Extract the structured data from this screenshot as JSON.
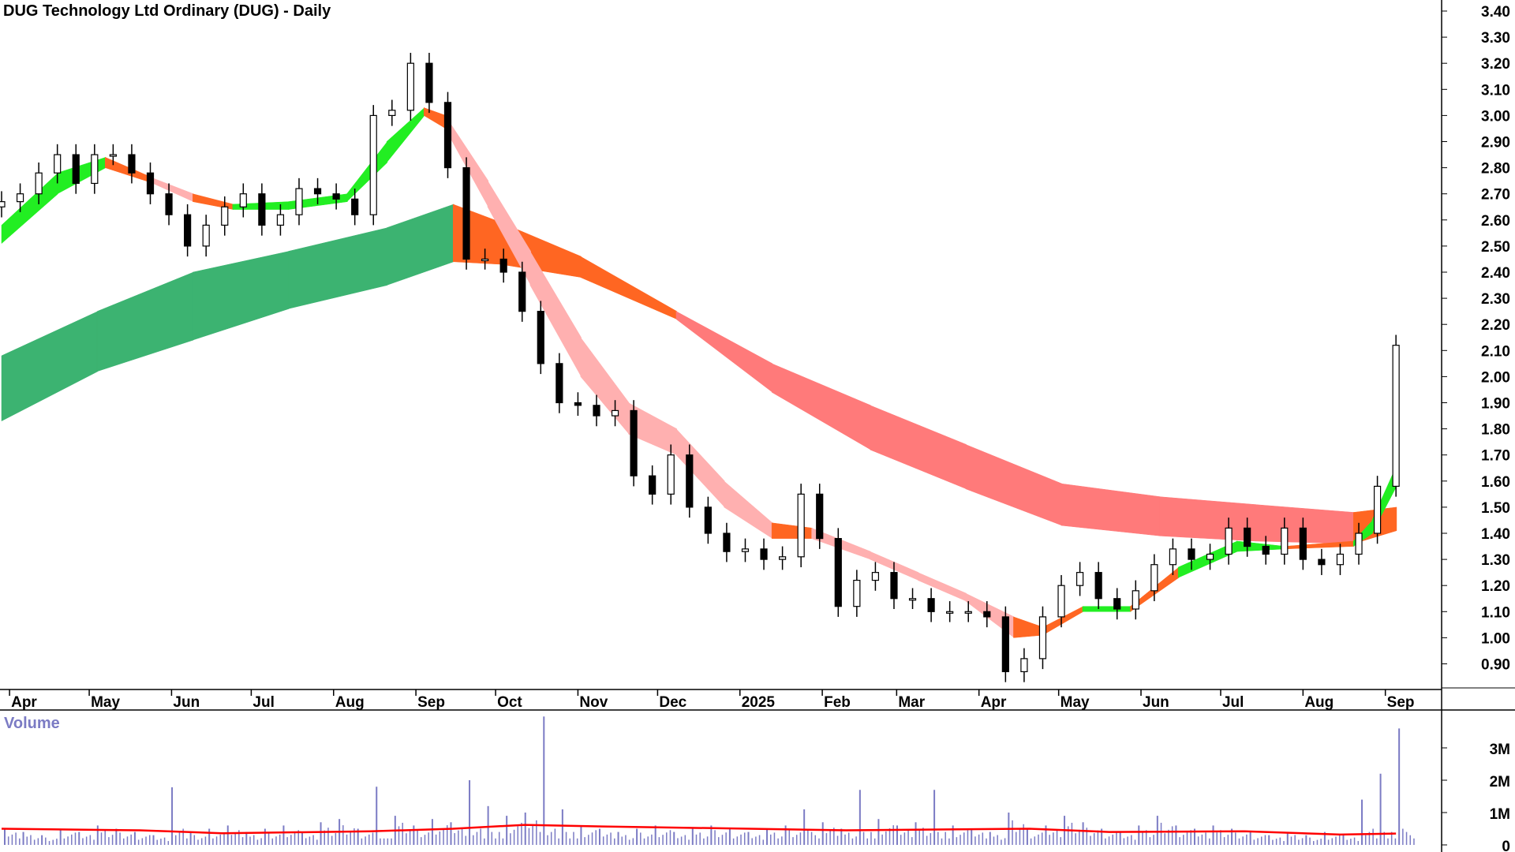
{
  "chart_data": {
    "title": "DUG Technology Ltd Ordinary (DUG) - Daily",
    "type": "candlestick",
    "price_axis": {
      "ylim": [
        0.85,
        3.42
      ],
      "ticks": [
        "3.40",
        "3.30",
        "3.20",
        "3.10",
        "3.00",
        "2.90",
        "2.80",
        "2.70",
        "2.60",
        "2.50",
        "2.40",
        "2.30",
        "2.20",
        "2.10",
        "2.00",
        "1.90",
        "1.80",
        "1.70",
        "1.60",
        "1.50",
        "1.40",
        "1.30",
        "1.20",
        "1.10",
        "1.00",
        "0.90"
      ],
      "position": "right"
    },
    "x_axis": {
      "ticks": [
        {
          "date": "2024-04-01",
          "label": "Apr"
        },
        {
          "date": "2024-05-01",
          "label": "May"
        },
        {
          "date": "2024-06-01",
          "label": "Jun"
        },
        {
          "date": "2024-07-01",
          "label": "Jul"
        },
        {
          "date": "2024-08-01",
          "label": "Aug"
        },
        {
          "date": "2024-09-01",
          "label": "Sep"
        },
        {
          "date": "2024-10-01",
          "label": "Oct"
        },
        {
          "date": "2024-11-01",
          "label": "Nov"
        },
        {
          "date": "2024-12-01",
          "label": "Dec"
        },
        {
          "date": "2025-01-01",
          "label": "2025"
        },
        {
          "date": "2025-02-01",
          "label": "Feb"
        },
        {
          "date": "2025-03-01",
          "label": "Mar"
        },
        {
          "date": "2025-04-01",
          "label": "Apr"
        },
        {
          "date": "2025-05-01",
          "label": "May"
        },
        {
          "date": "2025-06-01",
          "label": "Jun"
        },
        {
          "date": "2025-07-01",
          "label": "Jul"
        },
        {
          "date": "2025-08-01",
          "label": "Aug"
        },
        {
          "date": "2025-09-01",
          "label": "Sep"
        }
      ]
    },
    "weekly_start": "2024-03-29",
    "weekly_close": [
      2.67,
      2.7,
      2.78,
      2.85,
      2.74,
      2.85,
      2.85,
      2.78,
      2.7,
      2.62,
      2.5,
      2.58,
      2.65,
      2.7,
      2.58,
      2.62,
      2.72,
      2.7,
      2.68,
      2.62,
      3.0,
      3.02,
      3.2,
      3.05,
      2.8,
      2.45,
      2.45,
      2.4,
      2.25,
      2.05,
      1.9,
      1.89,
      1.85,
      1.87,
      1.62,
      1.55,
      1.7,
      1.5,
      1.4,
      1.33,
      1.34,
      1.3,
      1.31,
      1.55,
      1.38,
      1.12,
      1.22,
      1.25,
      1.15,
      1.15,
      1.1,
      1.1,
      1.1,
      1.08,
      0.87,
      0.92,
      1.08,
      1.2,
      1.25,
      1.15,
      1.11,
      1.18,
      1.28,
      1.34,
      1.3,
      1.32,
      1.42,
      1.35,
      1.32,
      1.42,
      1.3,
      1.28,
      1.32,
      1.4,
      1.58,
      2.12
    ],
    "long_term_band": [
      {
        "date": "2024-03-29",
        "upper": 2.08,
        "lower": 1.83,
        "color": "#3cb371"
      },
      {
        "date": "2024-05-04",
        "upper": 2.25,
        "lower": 2.02,
        "color": "#3cb371"
      },
      {
        "date": "2024-06-09",
        "upper": 2.4,
        "lower": 2.14,
        "color": "#3cb371"
      },
      {
        "date": "2024-07-15",
        "upper": 2.48,
        "lower": 2.26,
        "color": "#3cb371"
      },
      {
        "date": "2024-08-21",
        "upper": 2.57,
        "lower": 2.35,
        "color": "#3cb371"
      },
      {
        "date": "2024-09-15",
        "upper": 2.66,
        "lower": 2.44,
        "color": "#ff6622"
      },
      {
        "date": "2024-10-03",
        "upper": 2.59,
        "lower": 2.43,
        "color": "#ff6622"
      },
      {
        "date": "2024-11-02",
        "upper": 2.46,
        "lower": 2.38,
        "color": "#ff6622"
      },
      {
        "date": "2024-12-08",
        "upper": 2.25,
        "lower": 2.22,
        "color": "#ff7a7a"
      },
      {
        "date": "2025-01-13",
        "upper": 2.05,
        "lower": 1.94,
        "color": "#ff7a7a"
      },
      {
        "date": "2025-02-19",
        "upper": 1.89,
        "lower": 1.72,
        "color": "#ff7a7a"
      },
      {
        "date": "2025-03-27",
        "upper": 1.74,
        "lower": 1.57,
        "color": "#ff7a7a"
      },
      {
        "date": "2025-05-02",
        "upper": 1.59,
        "lower": 1.43,
        "color": "#ff7a7a"
      },
      {
        "date": "2025-06-08",
        "upper": 1.54,
        "lower": 1.39,
        "color": "#ff7a7a"
      },
      {
        "date": "2025-07-14",
        "upper": 1.51,
        "lower": 1.37,
        "color": "#ff7a7a"
      },
      {
        "date": "2025-08-20",
        "upper": 1.48,
        "lower": 1.36,
        "color": "#ff6622"
      },
      {
        "date": "2025-09-05",
        "upper": 1.5,
        "lower": 1.41,
        "color": "#ff6622"
      }
    ],
    "short_term_band": [
      {
        "date": "2024-03-29",
        "upper": 2.58,
        "lower": 2.51,
        "color": "#22ee22"
      },
      {
        "date": "2024-04-19",
        "upper": 2.78,
        "lower": 2.7,
        "color": "#22ee22"
      },
      {
        "date": "2024-05-07",
        "upper": 2.84,
        "lower": 2.8,
        "color": "#ff6622"
      },
      {
        "date": "2024-05-25",
        "upper": 2.76,
        "lower": 2.74,
        "color": "#ffb0b0"
      },
      {
        "date": "2024-06-09",
        "upper": 2.7,
        "lower": 2.67,
        "color": "#ff6622"
      },
      {
        "date": "2024-06-24",
        "upper": 2.66,
        "lower": 2.64,
        "color": "#22ee22"
      },
      {
        "date": "2024-07-15",
        "upper": 2.67,
        "lower": 2.64,
        "color": "#22ee22"
      },
      {
        "date": "2024-08-06",
        "upper": 2.7,
        "lower": 2.67,
        "color": "#22ee22"
      },
      {
        "date": "2024-08-21",
        "upper": 2.9,
        "lower": 2.82,
        "color": "#22ee22"
      },
      {
        "date": "2024-09-04",
        "upper": 3.03,
        "lower": 3.0,
        "color": "#ff6622"
      },
      {
        "date": "2024-09-12",
        "upper": 3.0,
        "lower": 2.95,
        "color": "#ffb0b0"
      },
      {
        "date": "2024-09-28",
        "upper": 2.75,
        "lower": 2.65,
        "color": "#ffb0b0"
      },
      {
        "date": "2024-10-14",
        "upper": 2.48,
        "lower": 2.35,
        "color": "#ffb0b0"
      },
      {
        "date": "2024-11-02",
        "upper": 2.15,
        "lower": 2.0,
        "color": "#ffb0b0"
      },
      {
        "date": "2024-11-20",
        "upper": 1.9,
        "lower": 1.78,
        "color": "#ffb0b0"
      },
      {
        "date": "2024-12-08",
        "upper": 1.8,
        "lower": 1.7,
        "color": "#ffb0b0"
      },
      {
        "date": "2024-12-26",
        "upper": 1.6,
        "lower": 1.5,
        "color": "#ffb0b0"
      },
      {
        "date": "2025-01-13",
        "upper": 1.44,
        "lower": 1.38,
        "color": "#ff6622"
      },
      {
        "date": "2025-01-28",
        "upper": 1.42,
        "lower": 1.38,
        "color": "#ffb0b0"
      },
      {
        "date": "2025-02-19",
        "upper": 1.33,
        "lower": 1.3,
        "color": "#ffb0b0"
      },
      {
        "date": "2025-03-09",
        "upper": 1.25,
        "lower": 1.22,
        "color": "#ffb0b0"
      },
      {
        "date": "2025-03-27",
        "upper": 1.17,
        "lower": 1.14,
        "color": "#ffb0b0"
      },
      {
        "date": "2025-04-14",
        "upper": 1.08,
        "lower": 1.0,
        "color": "#ff6622"
      },
      {
        "date": "2025-04-25",
        "upper": 1.04,
        "lower": 1.01,
        "color": "#ff6622"
      },
      {
        "date": "2025-05-10",
        "upper": 1.12,
        "lower": 1.1,
        "color": "#22ee22"
      },
      {
        "date": "2025-05-28",
        "upper": 1.12,
        "lower": 1.1,
        "color": "#ff6622"
      },
      {
        "date": "2025-06-15",
        "upper": 1.27,
        "lower": 1.23,
        "color": "#22ee22"
      },
      {
        "date": "2025-07-07",
        "upper": 1.37,
        "lower": 1.33,
        "color": "#22ee22"
      },
      {
        "date": "2025-07-25",
        "upper": 1.35,
        "lower": 1.34,
        "color": "#ff6622"
      },
      {
        "date": "2025-08-20",
        "upper": 1.37,
        "lower": 1.35,
        "color": "#22ee22"
      },
      {
        "date": "2025-08-27",
        "upper": 1.45,
        "lower": 1.4,
        "color": "#22ee22"
      },
      {
        "date": "2025-09-05",
        "upper": 1.66,
        "lower": 1.58,
        "color": "#22ee22"
      }
    ],
    "volume": {
      "label": "Volume",
      "ticks": [
        "3M",
        "2M",
        "1M",
        "0"
      ],
      "unit_millions": true,
      "weekly_values": [
        0.5,
        0.4,
        0.3,
        0.5,
        0.4,
        0.6,
        0.5,
        0.4,
        0.3,
        1.78,
        0.4,
        0.5,
        0.6,
        0.4,
        0.5,
        0.6,
        0.4,
        0.7,
        0.8,
        0.5,
        1.8,
        0.9,
        0.6,
        0.8,
        0.7,
        2.0,
        1.2,
        0.9,
        1.0,
        3.97,
        1.1,
        0.6,
        0.5,
        0.4,
        0.5,
        0.6,
        0.4,
        0.5,
        0.6,
        0.5,
        0.4,
        0.5,
        0.6,
        1.1,
        0.7,
        0.5,
        1.7,
        0.8,
        0.6,
        0.7,
        1.7,
        0.6,
        0.5,
        0.4,
        1.0,
        0.5,
        0.6,
        0.9,
        0.7,
        0.5,
        0.4,
        0.6,
        0.9,
        0.6,
        0.5,
        0.6,
        0.5,
        0.4,
        0.3,
        0.4,
        0.3,
        0.4,
        0.3,
        1.4,
        2.2,
        3.6
      ],
      "moving_average": [
        {
          "date": "2024-03-29",
          "value": 0.5
        },
        {
          "date": "2024-05-20",
          "value": 0.45
        },
        {
          "date": "2024-06-20",
          "value": 0.36
        },
        {
          "date": "2024-08-15",
          "value": 0.42
        },
        {
          "date": "2024-09-15",
          "value": 0.5
        },
        {
          "date": "2024-10-12",
          "value": 0.62
        },
        {
          "date": "2024-11-10",
          "value": 0.57
        },
        {
          "date": "2024-12-20",
          "value": 0.52
        },
        {
          "date": "2025-02-10",
          "value": 0.45
        },
        {
          "date": "2025-04-20",
          "value": 0.5
        },
        {
          "date": "2025-05-20",
          "value": 0.4
        },
        {
          "date": "2025-07-10",
          "value": 0.42
        },
        {
          "date": "2025-08-15",
          "value": 0.32
        },
        {
          "date": "2025-09-05",
          "value": 0.35
        }
      ]
    },
    "colors": {
      "up": "#ffffff",
      "down": "#000000",
      "volume_bar": "#7b7bc4",
      "volume_ma": "#ff0000"
    }
  }
}
